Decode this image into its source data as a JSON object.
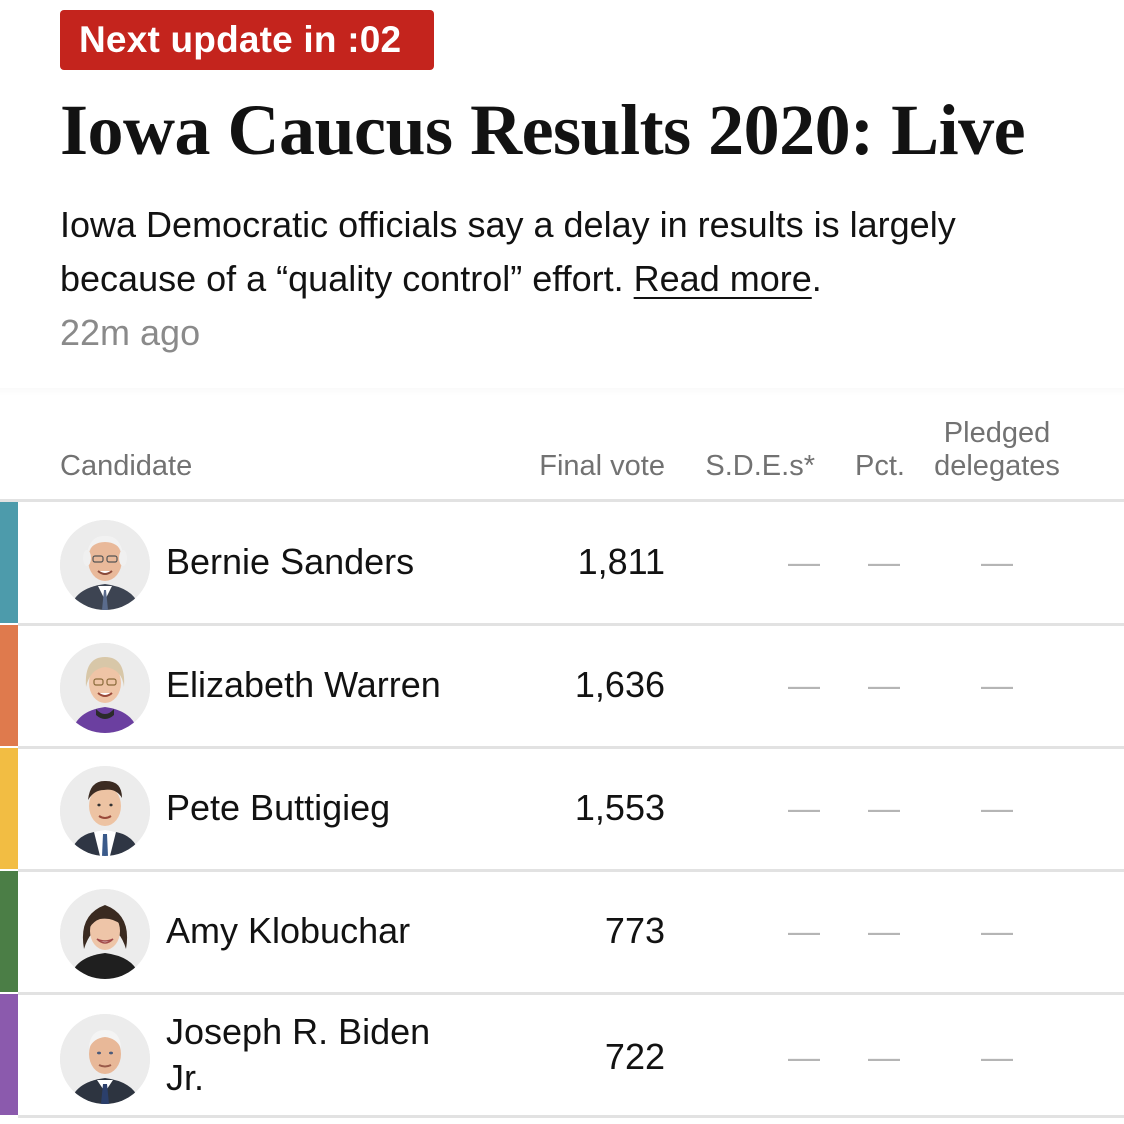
{
  "badge": {
    "label": "Next update in :02",
    "color": "#c4241d"
  },
  "headline": "Iowa Caucus Results 2020: Live",
  "summary": {
    "text": "Iowa Democratic officials say a delay in results is largely because of a “quality control” effort. ",
    "link_label": "Read more",
    "end_punct": "."
  },
  "timestamp": "22m ago",
  "table": {
    "headers": {
      "candidate": "Candidate",
      "final_vote": "Final vote",
      "sdes": "S.D.E.s*",
      "pct": "Pct.",
      "pledged_line1": "Pledged",
      "pledged_line2": "delegates"
    },
    "rows": [
      {
        "name": "Bernie Sanders",
        "votes": "1,811",
        "sdes": "—",
        "pct": "—",
        "pledged": "—",
        "color": "#4d9bab",
        "avatar_icon": "bernie-sanders-portrait"
      },
      {
        "name": "Elizabeth Warren",
        "votes": "1,636",
        "sdes": "—",
        "pct": "—",
        "pledged": "—",
        "color": "#df7a4d",
        "avatar_icon": "elizabeth-warren-portrait"
      },
      {
        "name": "Pete Buttigieg",
        "votes": "1,553",
        "sdes": "—",
        "pct": "—",
        "pledged": "—",
        "color": "#f2bd43",
        "avatar_icon": "pete-buttigieg-portrait"
      },
      {
        "name": "Amy Klobuchar",
        "votes": "773",
        "sdes": "—",
        "pct": "—",
        "pledged": "—",
        "color": "#4b7e46",
        "avatar_icon": "amy-klobuchar-portrait"
      },
      {
        "name": "Joseph R. Biden Jr.",
        "votes": "722",
        "sdes": "—",
        "pct": "—",
        "pledged": "—",
        "color": "#8b5aad",
        "avatar_icon": "joseph-biden-portrait"
      }
    ]
  }
}
